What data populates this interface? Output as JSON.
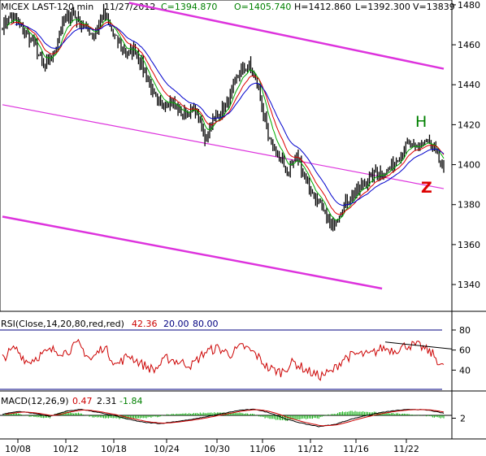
{
  "header": {
    "symbol": "MICEX LAST-120 min",
    "date": "11/27/2012",
    "close": "C=1394.870",
    "open": "O=1405.740",
    "high": "H=1412.860",
    "low": "L=1392.300",
    "volume": "V=13839"
  },
  "annotations": {
    "h": "H",
    "z": "Z"
  },
  "rsi": {
    "label": "RSI(Close,14,20,80,red,red)",
    "value": "42.36",
    "low": "20.00",
    "high": "80.00",
    "ticks": [
      "80",
      "60",
      "40"
    ]
  },
  "macd": {
    "label": "MACD(12,26,9)",
    "v1": "0.47",
    "v2": "2.31",
    "v3": "-1.84",
    "ticks": [
      "2"
    ]
  },
  "colors": {
    "up": "#008000",
    "down": "#ff0000",
    "header": "#000000",
    "candles": "#000000",
    "ma_fast": "#00aa00",
    "ma_mid": "#dd0000",
    "ma_slow": "#0000cc",
    "channel": "#dd33dd",
    "rsi_line": "#cc0000",
    "rsi_level": "#000080",
    "macd_line": "#000000",
    "signal_line": "#cc0000",
    "hist": "#00aa00"
  },
  "chart_data": {
    "type": "line",
    "price_axis": {
      "ticks": [
        1480,
        1460,
        1440,
        1420,
        1400,
        1380,
        1360,
        1340
      ],
      "range": [
        1327,
        1482
      ]
    },
    "x_ticks": [
      "10/08",
      "10/12",
      "10/18",
      "10/24",
      "10/30",
      "11/06",
      "11/12",
      "11/16",
      "11/22"
    ],
    "price_anchors": [
      [
        0,
        1470
      ],
      [
        6,
        1474
      ],
      [
        12,
        1468
      ],
      [
        20,
        1461
      ],
      [
        26,
        1448
      ],
      [
        32,
        1455
      ],
      [
        38,
        1470
      ],
      [
        44,
        1476
      ],
      [
        50,
        1470
      ],
      [
        58,
        1465
      ],
      [
        64,
        1476
      ],
      [
        70,
        1465
      ],
      [
        78,
        1455
      ],
      [
        84,
        1458
      ],
      [
        90,
        1446
      ],
      [
        98,
        1430
      ],
      [
        106,
        1432
      ],
      [
        114,
        1425
      ],
      [
        122,
        1428
      ],
      [
        128,
        1413
      ],
      [
        134,
        1423
      ],
      [
        142,
        1430
      ],
      [
        150,
        1446
      ],
      [
        156,
        1450
      ],
      [
        162,
        1438
      ],
      [
        168,
        1413
      ],
      [
        174,
        1405
      ],
      [
        180,
        1396
      ],
      [
        186,
        1404
      ],
      [
        190,
        1397
      ],
      [
        196,
        1385
      ],
      [
        204,
        1375
      ],
      [
        208,
        1368
      ],
      [
        214,
        1378
      ],
      [
        220,
        1384
      ],
      [
        228,
        1390
      ],
      [
        236,
        1396
      ],
      [
        244,
        1397
      ],
      [
        250,
        1404
      ],
      [
        256,
        1410
      ],
      [
        262,
        1408
      ],
      [
        268,
        1412
      ],
      [
        274,
        1406
      ],
      [
        279,
        1396
      ]
    ],
    "rsi_anchors": [
      [
        0,
        52
      ],
      [
        8,
        62
      ],
      [
        16,
        48
      ],
      [
        24,
        55
      ],
      [
        32,
        60
      ],
      [
        40,
        58
      ],
      [
        48,
        66
      ],
      [
        56,
        50
      ],
      [
        64,
        64
      ],
      [
        72,
        45
      ],
      [
        80,
        55
      ],
      [
        88,
        46
      ],
      [
        96,
        40
      ],
      [
        104,
        52
      ],
      [
        112,
        48
      ],
      [
        120,
        45
      ],
      [
        128,
        58
      ],
      [
        136,
        62
      ],
      [
        144,
        56
      ],
      [
        152,
        64
      ],
      [
        160,
        56
      ],
      [
        168,
        42
      ],
      [
        176,
        38
      ],
      [
        184,
        48
      ],
      [
        192,
        40
      ],
      [
        200,
        34
      ],
      [
        208,
        38
      ],
      [
        216,
        52
      ],
      [
        224,
        56
      ],
      [
        232,
        55
      ],
      [
        240,
        62
      ],
      [
        248,
        60
      ],
      [
        256,
        65
      ],
      [
        264,
        64
      ],
      [
        272,
        56
      ],
      [
        279,
        42
      ]
    ],
    "macd_anchors": [
      [
        0,
        1
      ],
      [
        10,
        4
      ],
      [
        20,
        2
      ],
      [
        30,
        -1
      ],
      [
        40,
        4
      ],
      [
        50,
        6
      ],
      [
        60,
        3
      ],
      [
        70,
        0
      ],
      [
        80,
        -4
      ],
      [
        90,
        -7
      ],
      [
        100,
        -8
      ],
      [
        110,
        -6
      ],
      [
        120,
        -4
      ],
      [
        130,
        -1
      ],
      [
        140,
        2
      ],
      [
        150,
        5
      ],
      [
        160,
        6
      ],
      [
        170,
        2
      ],
      [
        180,
        -4
      ],
      [
        190,
        -8
      ],
      [
        200,
        -11
      ],
      [
        210,
        -9
      ],
      [
        220,
        -4
      ],
      [
        230,
        0
      ],
      [
        240,
        3
      ],
      [
        250,
        5
      ],
      [
        260,
        6
      ],
      [
        270,
        5
      ],
      [
        279,
        2
      ]
    ],
    "channel_lines": [
      {
        "from": [
          80,
          1481
        ],
        "to": [
          279,
          1448
        ]
      },
      {
        "from": [
          0,
          1430
        ],
        "to": [
          279,
          1388
        ]
      },
      {
        "from": [
          0,
          1374
        ],
        "to": [
          240,
          1338
        ]
      }
    ],
    "candle_count": 280
  }
}
